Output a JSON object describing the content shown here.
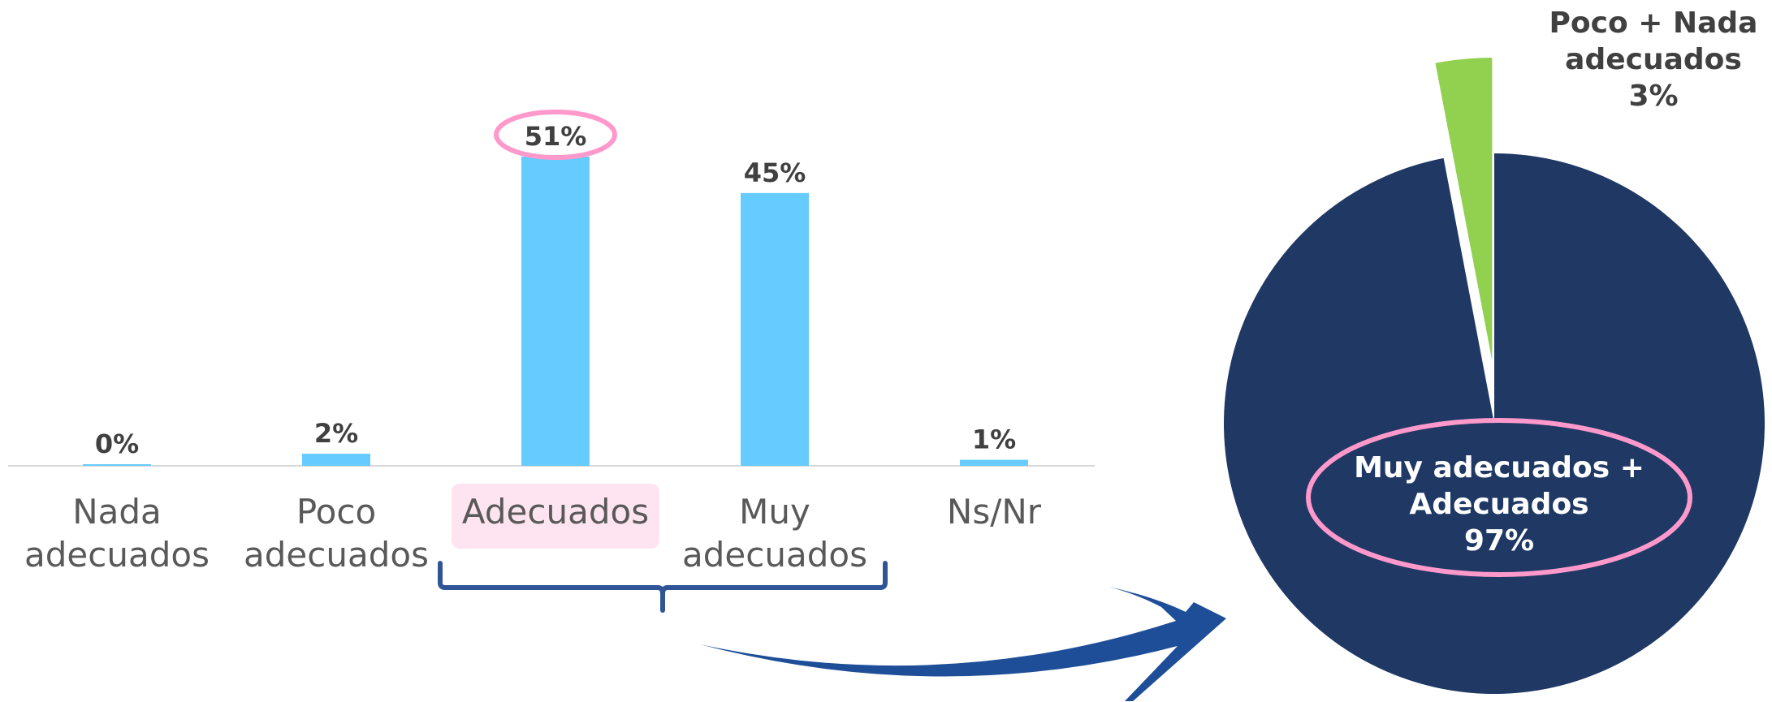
{
  "chart_data": [
    {
      "type": "bar",
      "categories": [
        [
          "Nada",
          "adecuados"
        ],
        [
          "Poco",
          "adecuados"
        ],
        [
          "Adecuados"
        ],
        [
          "Muy",
          "adecuados"
        ],
        [
          "Ns/Nr"
        ]
      ],
      "values": [
        0,
        2,
        51,
        45,
        1
      ],
      "value_labels": [
        "0%",
        "2%",
        "51%",
        "45%",
        "1%"
      ],
      "highlighted_category": "Adecuados",
      "bar_color": "#66CCFF",
      "highlight_color": "#FF99CC",
      "highlight_fill": "#FDE4F0",
      "ylim": [
        0,
        51
      ]
    },
    {
      "type": "pie",
      "slices": [
        {
          "label_lines": [
            "Muy adecuados +",
            "Adecuados",
            "97%"
          ],
          "value": 97,
          "color": "#203864"
        },
        {
          "label_lines": [
            "Poco + Nada",
            "adecuados",
            "3%"
          ],
          "value": 3,
          "color": "#92D050"
        }
      ]
    }
  ],
  "colors": {
    "axis": "#D9D9D9",
    "brace": "#2F5597",
    "arrow": "#1F4E99",
    "value_text": "#404040",
    "category_text": "#595959",
    "pie_label_inside": "#FFFFFF",
    "pie_label_outside": "#404040"
  }
}
